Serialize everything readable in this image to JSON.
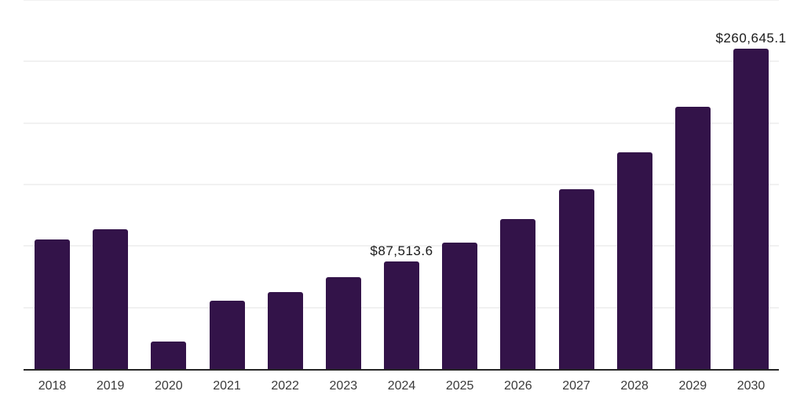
{
  "chart_data": {
    "type": "bar",
    "title": "",
    "xlabel": "",
    "ylabel": "",
    "categories": [
      "2018",
      "2019",
      "2020",
      "2021",
      "2022",
      "2023",
      "2024",
      "2025",
      "2026",
      "2027",
      "2028",
      "2029",
      "2030"
    ],
    "values": [
      105400,
      113700,
      22400,
      55600,
      62600,
      74700,
      87513.6,
      102800,
      122000,
      146300,
      176300,
      213400,
      260645.1
    ],
    "value_labels": [
      {
        "category": "2024",
        "text": "$87,513.6"
      },
      {
        "category": "2030",
        "text": "$260,645.1"
      }
    ],
    "ylim": [
      0,
      300000
    ],
    "grid_step": 50000,
    "grid": "on",
    "legend": "none",
    "colors": {
      "bar": "#331349",
      "axis": "#262626",
      "gridline": "#f1f1f1",
      "tick_label": "#3a3a3a",
      "value_label": "#1a1a1a",
      "background": "#ffffff"
    }
  }
}
